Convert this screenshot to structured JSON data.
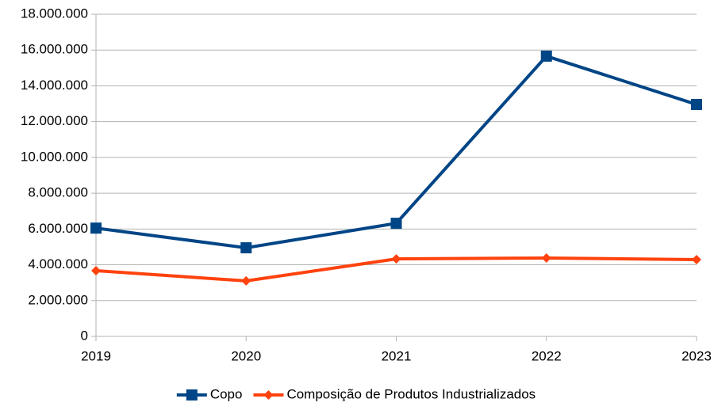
{
  "chart_data": {
    "type": "line",
    "categories": [
      "2019",
      "2020",
      "2021",
      "2022",
      "2023"
    ],
    "series": [
      {
        "name": "Copo",
        "color": "#004586",
        "marker": "square",
        "values": [
          6050000,
          4950000,
          6320000,
          15660000,
          12960000
        ]
      },
      {
        "name": "Composição de Produtos Industrializados",
        "color": "#ff420e",
        "marker": "diamond",
        "values": [
          3670000,
          3100000,
          4330000,
          4380000,
          4290000
        ]
      }
    ],
    "ylim": [
      0,
      18000000
    ],
    "yticks": [
      0,
      {
        "value": 2000000,
        "label": "2.000.000"
      },
      {
        "value": 4000000,
        "label": "4.000.000"
      },
      {
        "value": 6000000,
        "label": "6.000.000"
      },
      {
        "value": 8000000,
        "label": "8.000.000"
      },
      {
        "value": 10000000,
        "label": "10.000.000"
      },
      {
        "value": 12000000,
        "label": "12.000.000"
      },
      {
        "value": 14000000,
        "label": "14.000.000"
      },
      {
        "value": 16000000,
        "label": "16.000.000"
      },
      {
        "value": 18000000,
        "label": "18.000.000"
      }
    ],
    "grid": true,
    "legend": "bottom"
  }
}
